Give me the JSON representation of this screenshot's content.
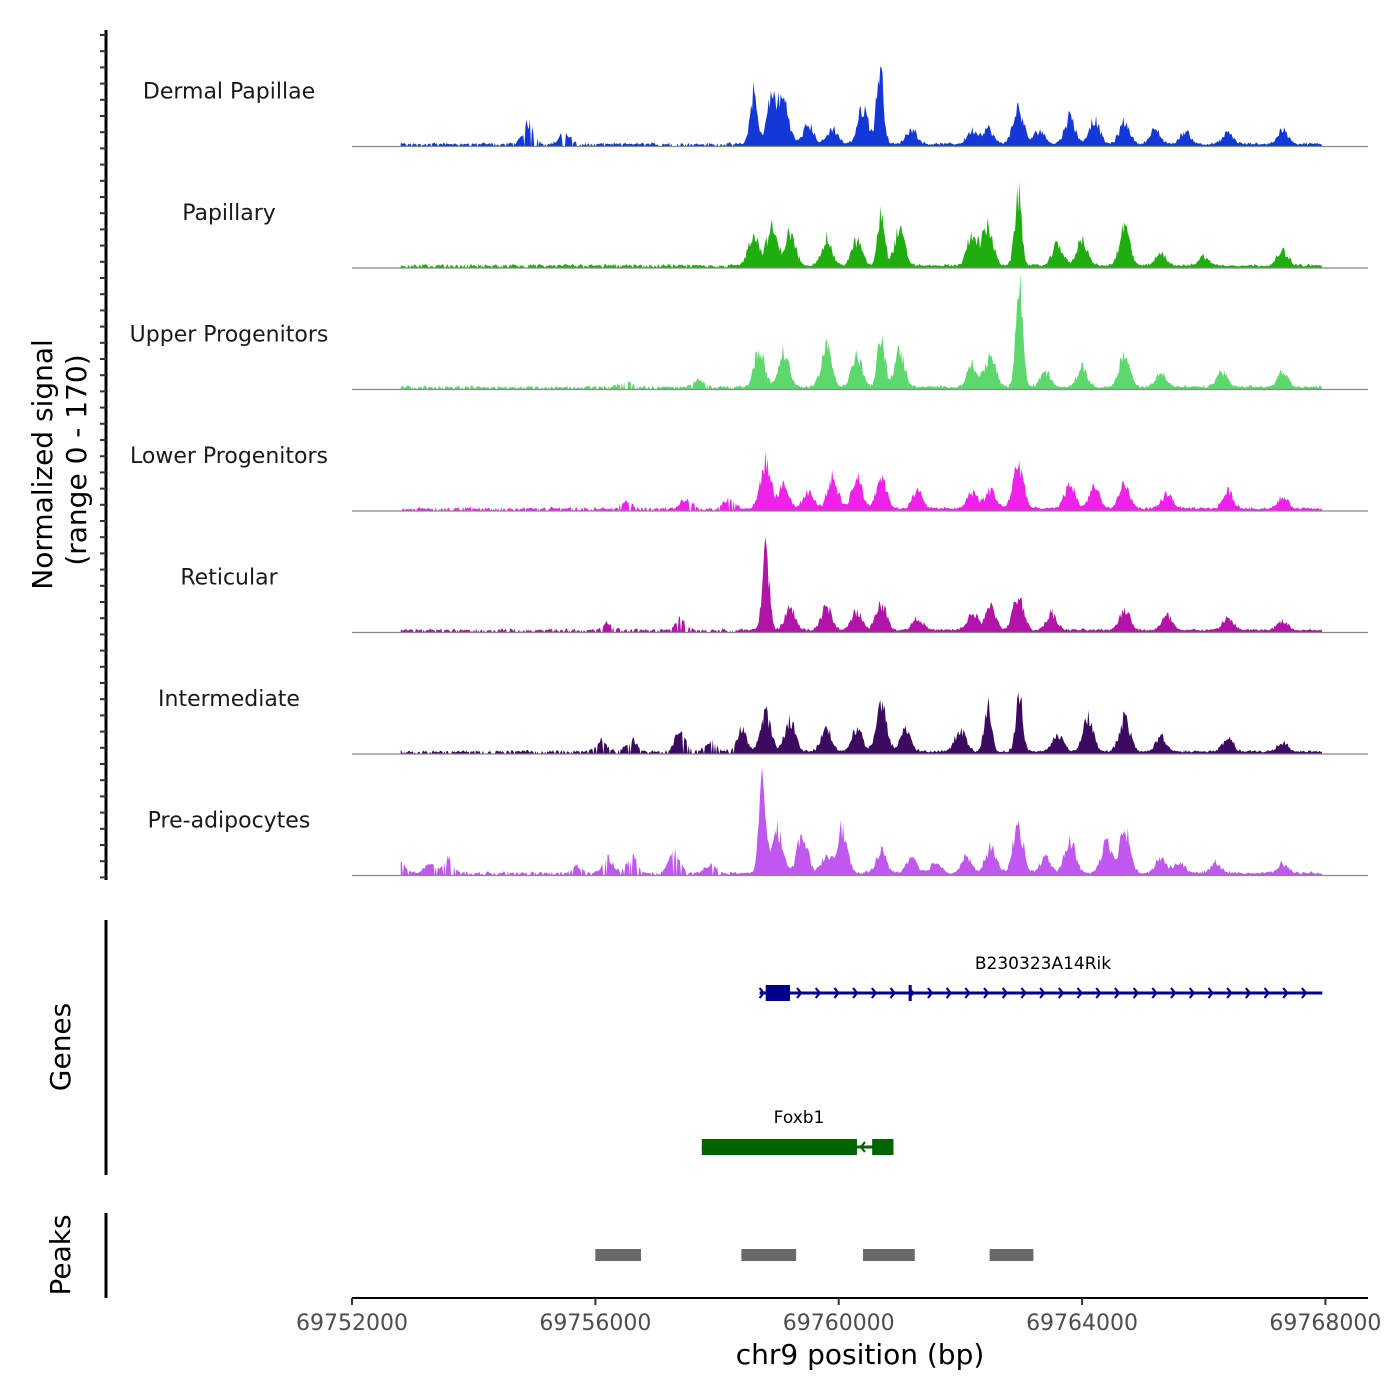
{
  "chart_data": {
    "type": "area",
    "title": "",
    "ylabel": "Normalized signal\n(range 0 - 170)",
    "ylabel_lines": [
      "Normalized signal",
      "(range 0 - 170)"
    ],
    "xlabel": "chr9 position (bp)",
    "chromosome": "chr9",
    "xlim": [
      69752000,
      69768700
    ],
    "ylim": [
      0,
      170
    ],
    "x_ticks": [
      69752000,
      69756000,
      69760000,
      69764000,
      69768000
    ],
    "x_tick_labels": [
      "69752000",
      "69756000",
      "69760000",
      "69764000",
      "69768000"
    ],
    "signal_range": [
      69752800,
      69767950
    ],
    "series": [
      {
        "name": "Dermal Papillae",
        "color": "#1438d8",
        "peaks": [
          [
            69754900,
            28
          ],
          [
            69755500,
            14
          ],
          [
            69758600,
            66
          ],
          [
            69758900,
            58
          ],
          [
            69759100,
            54
          ],
          [
            69759500,
            25
          ],
          [
            69759900,
            20
          ],
          [
            69760400,
            48
          ],
          [
            69760680,
            100
          ],
          [
            69761200,
            20
          ],
          [
            69762200,
            18
          ],
          [
            69762450,
            20
          ],
          [
            69762950,
            46
          ],
          [
            69763300,
            18
          ],
          [
            69763800,
            36
          ],
          [
            69764200,
            32
          ],
          [
            69764700,
            28
          ],
          [
            69765200,
            18
          ],
          [
            69765700,
            16
          ],
          [
            69766400,
            14
          ],
          [
            69767300,
            18
          ]
        ]
      },
      {
        "name": "Papillary",
        "color": "#1fad0f",
        "peaks": [
          [
            69758600,
            42
          ],
          [
            69758900,
            48
          ],
          [
            69759200,
            42
          ],
          [
            69759800,
            35
          ],
          [
            69760300,
            32
          ],
          [
            69760700,
            70
          ],
          [
            69761000,
            45
          ],
          [
            69762200,
            42
          ],
          [
            69762450,
            50
          ],
          [
            69762950,
            92
          ],
          [
            69763600,
            28
          ],
          [
            69764000,
            35
          ],
          [
            69764700,
            50
          ],
          [
            69765300,
            16
          ],
          [
            69766000,
            12
          ],
          [
            69767300,
            20
          ]
        ]
      },
      {
        "name": "Upper Progenitors",
        "color": "#5cd86c",
        "peaks": [
          [
            69756500,
            8
          ],
          [
            69757700,
            10
          ],
          [
            69758700,
            50
          ],
          [
            69759100,
            45
          ],
          [
            69759800,
            54
          ],
          [
            69760300,
            40
          ],
          [
            69760700,
            72
          ],
          [
            69761000,
            45
          ],
          [
            69762200,
            30
          ],
          [
            69762500,
            42
          ],
          [
            69762970,
            134
          ],
          [
            69763400,
            20
          ],
          [
            69764000,
            25
          ],
          [
            69764700,
            42
          ],
          [
            69765300,
            20
          ],
          [
            69766300,
            20
          ],
          [
            69767300,
            20
          ]
        ]
      },
      {
        "name": "Lower Progenitors",
        "color": "#ee22e8",
        "peaks": [
          [
            69756500,
            10
          ],
          [
            69757500,
            14
          ],
          [
            69758200,
            14
          ],
          [
            69758800,
            60
          ],
          [
            69759100,
            30
          ],
          [
            69759500,
            22
          ],
          [
            69759900,
            40
          ],
          [
            69760300,
            40
          ],
          [
            69760700,
            42
          ],
          [
            69761300,
            22
          ],
          [
            69762200,
            22
          ],
          [
            69762500,
            24
          ],
          [
            69762950,
            58
          ],
          [
            69763800,
            32
          ],
          [
            69764200,
            28
          ],
          [
            69764700,
            30
          ],
          [
            69765400,
            20
          ],
          [
            69766400,
            22
          ],
          [
            69767300,
            14
          ]
        ]
      },
      {
        "name": "Reticular",
        "color": "#b214a8",
        "peaks": [
          [
            69756200,
            10
          ],
          [
            69757400,
            14
          ],
          [
            69758800,
            100
          ],
          [
            69759200,
            28
          ],
          [
            69759800,
            30
          ],
          [
            69760300,
            24
          ],
          [
            69760700,
            34
          ],
          [
            69761300,
            16
          ],
          [
            69762200,
            22
          ],
          [
            69762500,
            30
          ],
          [
            69762950,
            44
          ],
          [
            69763500,
            22
          ],
          [
            69764700,
            28
          ],
          [
            69765400,
            18
          ],
          [
            69766400,
            16
          ],
          [
            69767300,
            12
          ]
        ]
      },
      {
        "name": "Intermediate",
        "color": "#3c0a60",
        "peaks": [
          [
            69756100,
            14
          ],
          [
            69756600,
            16
          ],
          [
            69757400,
            28
          ],
          [
            69757900,
            14
          ],
          [
            69758400,
            28
          ],
          [
            69758800,
            48
          ],
          [
            69759200,
            42
          ],
          [
            69759800,
            30
          ],
          [
            69760300,
            30
          ],
          [
            69760700,
            60
          ],
          [
            69761100,
            30
          ],
          [
            69762000,
            30
          ],
          [
            69762450,
            64
          ],
          [
            69762970,
            72
          ],
          [
            69763600,
            24
          ],
          [
            69764100,
            46
          ],
          [
            69764700,
            44
          ],
          [
            69765300,
            20
          ],
          [
            69766400,
            16
          ],
          [
            69767300,
            12
          ]
        ]
      },
      {
        "name": "Pre-adipocytes",
        "color": "#c058f0",
        "peaks": [
          [
            69752800,
            14
          ],
          [
            69753300,
            12
          ],
          [
            69753600,
            20
          ],
          [
            69755700,
            8
          ],
          [
            69756200,
            20
          ],
          [
            69756600,
            20
          ],
          [
            69757300,
            30
          ],
          [
            69757900,
            12
          ],
          [
            69758750,
            122
          ],
          [
            69759000,
            56
          ],
          [
            69759400,
            50
          ],
          [
            69759800,
            22
          ],
          [
            69760050,
            56
          ],
          [
            69760700,
            28
          ],
          [
            69761200,
            22
          ],
          [
            69761600,
            14
          ],
          [
            69762100,
            20
          ],
          [
            69762500,
            34
          ],
          [
            69762950,
            60
          ],
          [
            69763400,
            20
          ],
          [
            69763800,
            44
          ],
          [
            69764400,
            38
          ],
          [
            69764700,
            56
          ],
          [
            69765300,
            20
          ],
          [
            69765600,
            14
          ],
          [
            69766200,
            14
          ],
          [
            69767300,
            12
          ]
        ]
      }
    ],
    "genes": [
      {
        "name": "B230323A14Rik",
        "color": "#00008b",
        "strand": "+",
        "start": 69758700,
        "end": 69767950,
        "exons": [
          [
            69758800,
            69759200
          ],
          [
            69761150,
            69761200
          ]
        ]
      },
      {
        "name": "Foxb1",
        "color": "#006400",
        "strand": "-",
        "start": 69757750,
        "end": 69760900,
        "exons": [
          [
            69757750,
            69760300
          ],
          [
            69760550,
            69760900
          ]
        ]
      }
    ],
    "peaks_track": [
      [
        69756000,
        69756750
      ],
      [
        69758400,
        69759300
      ],
      [
        69760400,
        69761250
      ],
      [
        69762480,
        69763200
      ]
    ],
    "peaks_color": "#696969",
    "panel_titles": {
      "genes": "Genes",
      "peaks": "Peaks"
    }
  }
}
